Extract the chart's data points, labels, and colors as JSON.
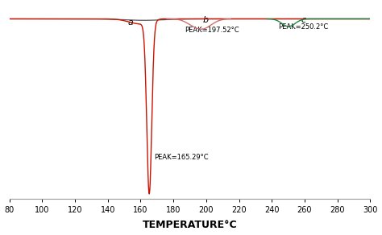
{
  "xlabel": "TEMPERATURE°C",
  "xlim": [
    80,
    300
  ],
  "xticks": [
    80,
    100,
    120,
    140,
    160,
    180,
    200,
    220,
    240,
    260,
    280,
    300
  ],
  "background_color": "#ffffff",
  "curve_a_color": "#cc1100",
  "curve_b_color": "#d47070",
  "curve_c_color": "#228844",
  "baseline_color": "#555555",
  "peak_a": 165.29,
  "peak_b": 197.52,
  "peak_c": 250.2,
  "label_a": "a",
  "label_b": "b",
  "label_c": "c",
  "annot_a": "PEAK=165.29°C",
  "annot_b": "PEAK=197.52°C",
  "annot_c": "PEAK=250.2°C",
  "ylim": [
    -10,
    0.8
  ],
  "baseline_y": 0.0
}
